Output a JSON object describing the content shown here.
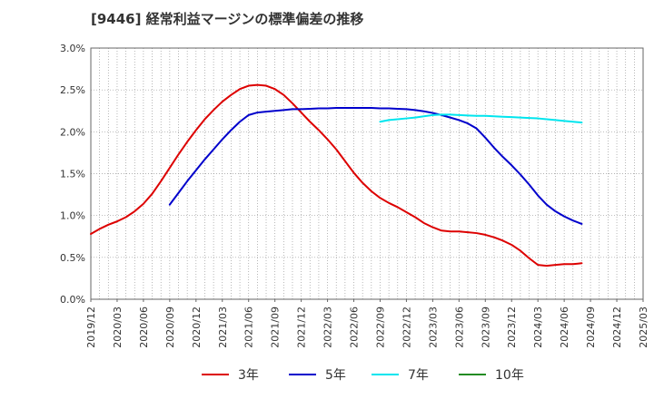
{
  "chart_data": {
    "type": "line",
    "title": "[9446]  経常利益マージンの標準偏差の推移",
    "xlabel": "",
    "ylabel": "",
    "x_ticks": [
      "2019/12",
      "2020/03",
      "2020/06",
      "2020/09",
      "2020/12",
      "2021/03",
      "2021/06",
      "2021/09",
      "2021/12",
      "2022/03",
      "2022/06",
      "2022/09",
      "2022/12",
      "2023/03",
      "2023/06",
      "2023/09",
      "2023/12",
      "2024/03",
      "2024/06",
      "2024/09",
      "2024/12",
      "2025/03"
    ],
    "y_ticks": [
      "0.0%",
      "0.5%",
      "1.0%",
      "1.5%",
      "2.0%",
      "2.5%",
      "3.0%"
    ],
    "xlim": [
      "2019/12",
      "2025/03"
    ],
    "ylim": [
      0,
      3.0
    ],
    "grid": true,
    "legend_position": "bottom",
    "series": [
      {
        "name": "3年",
        "color": "#dd0000",
        "points": [
          [
            "2019/12",
            0.78
          ],
          [
            "2020/01",
            0.84
          ],
          [
            "2020/02",
            0.89
          ],
          [
            "2020/03",
            0.93
          ],
          [
            "2020/04",
            0.98
          ],
          [
            "2020/05",
            1.05
          ],
          [
            "2020/06",
            1.14
          ],
          [
            "2020/07",
            1.26
          ],
          [
            "2020/08",
            1.41
          ],
          [
            "2020/09",
            1.57
          ],
          [
            "2020/10",
            1.73
          ],
          [
            "2020/11",
            1.88
          ],
          [
            "2020/12",
            2.02
          ],
          [
            "2021/01",
            2.15
          ],
          [
            "2021/02",
            2.26
          ],
          [
            "2021/03",
            2.36
          ],
          [
            "2021/04",
            2.44
          ],
          [
            "2021/05",
            2.51
          ],
          [
            "2021/06",
            2.55
          ],
          [
            "2021/07",
            2.56
          ],
          [
            "2021/08",
            2.55
          ],
          [
            "2021/09",
            2.51
          ],
          [
            "2021/10",
            2.44
          ],
          [
            "2021/11",
            2.34
          ],
          [
            "2021/12",
            2.23
          ],
          [
            "2022/01",
            2.12
          ],
          [
            "2022/02",
            2.02
          ],
          [
            "2022/03",
            1.91
          ],
          [
            "2022/04",
            1.79
          ],
          [
            "2022/05",
            1.65
          ],
          [
            "2022/06",
            1.51
          ],
          [
            "2022/07",
            1.39
          ],
          [
            "2022/08",
            1.29
          ],
          [
            "2022/09",
            1.21
          ],
          [
            "2022/10",
            1.15
          ],
          [
            "2022/11",
            1.1
          ],
          [
            "2022/12",
            1.04
          ],
          [
            "2023/01",
            0.98
          ],
          [
            "2023/02",
            0.91
          ],
          [
            "2023/03",
            0.86
          ],
          [
            "2023/04",
            0.82
          ],
          [
            "2023/05",
            0.81
          ],
          [
            "2023/06",
            0.81
          ],
          [
            "2023/07",
            0.8
          ],
          [
            "2023/08",
            0.79
          ],
          [
            "2023/09",
            0.77
          ],
          [
            "2023/10",
            0.74
          ],
          [
            "2023/11",
            0.7
          ],
          [
            "2023/12",
            0.65
          ],
          [
            "2024/01",
            0.58
          ],
          [
            "2024/02",
            0.49
          ],
          [
            "2024/03",
            0.41
          ],
          [
            "2024/04",
            0.4
          ],
          [
            "2024/05",
            0.41
          ],
          [
            "2024/06",
            0.42
          ],
          [
            "2024/07",
            0.42
          ],
          [
            "2024/08",
            0.43
          ]
        ]
      },
      {
        "name": "5年",
        "color": "#0000cc",
        "points": [
          [
            "2020/09",
            1.13
          ],
          [
            "2020/10",
            1.27
          ],
          [
            "2020/11",
            1.41
          ],
          [
            "2020/12",
            1.54
          ],
          [
            "2021/01",
            1.67
          ],
          [
            "2021/02",
            1.79
          ],
          [
            "2021/03",
            1.91
          ],
          [
            "2021/04",
            2.02
          ],
          [
            "2021/05",
            2.12
          ],
          [
            "2021/06",
            2.2
          ],
          [
            "2021/07",
            2.23
          ],
          [
            "2021/08",
            2.24
          ],
          [
            "2021/09",
            2.25
          ],
          [
            "2021/10",
            2.26
          ],
          [
            "2021/11",
            2.27
          ],
          [
            "2021/12",
            2.27
          ],
          [
            "2022/01",
            2.275
          ],
          [
            "2022/02",
            2.28
          ],
          [
            "2022/03",
            2.28
          ],
          [
            "2022/04",
            2.285
          ],
          [
            "2022/05",
            2.285
          ],
          [
            "2022/06",
            2.285
          ],
          [
            "2022/07",
            2.285
          ],
          [
            "2022/08",
            2.285
          ],
          [
            "2022/09",
            2.28
          ],
          [
            "2022/10",
            2.28
          ],
          [
            "2022/11",
            2.275
          ],
          [
            "2022/12",
            2.27
          ],
          [
            "2023/01",
            2.26
          ],
          [
            "2023/02",
            2.245
          ],
          [
            "2023/03",
            2.225
          ],
          [
            "2023/04",
            2.2
          ],
          [
            "2023/05",
            2.17
          ],
          [
            "2023/06",
            2.14
          ],
          [
            "2023/07",
            2.1
          ],
          [
            "2023/08",
            2.04
          ],
          [
            "2023/09",
            1.93
          ],
          [
            "2023/10",
            1.81
          ],
          [
            "2023/11",
            1.7
          ],
          [
            "2023/12",
            1.6
          ],
          [
            "2024/01",
            1.49
          ],
          [
            "2024/02",
            1.37
          ],
          [
            "2024/03",
            1.24
          ],
          [
            "2024/04",
            1.13
          ],
          [
            "2024/05",
            1.05
          ],
          [
            "2024/06",
            0.99
          ],
          [
            "2024/07",
            0.94
          ],
          [
            "2024/08",
            0.9
          ]
        ]
      },
      {
        "name": "7年",
        "color": "#00e5ee",
        "points": [
          [
            "2022/09",
            2.12
          ],
          [
            "2022/10",
            2.14
          ],
          [
            "2022/11",
            2.15
          ],
          [
            "2022/12",
            2.16
          ],
          [
            "2023/01",
            2.17
          ],
          [
            "2023/02",
            2.185
          ],
          [
            "2023/03",
            2.2
          ],
          [
            "2023/04",
            2.205
          ],
          [
            "2023/05",
            2.205
          ],
          [
            "2023/06",
            2.2
          ],
          [
            "2023/07",
            2.195
          ],
          [
            "2023/08",
            2.19
          ],
          [
            "2023/09",
            2.19
          ],
          [
            "2023/10",
            2.185
          ],
          [
            "2023/11",
            2.18
          ],
          [
            "2023/12",
            2.175
          ],
          [
            "2024/01",
            2.17
          ],
          [
            "2024/02",
            2.165
          ],
          [
            "2024/03",
            2.16
          ],
          [
            "2024/04",
            2.15
          ],
          [
            "2024/05",
            2.14
          ],
          [
            "2024/06",
            2.13
          ],
          [
            "2024/07",
            2.12
          ],
          [
            "2024/08",
            2.11
          ]
        ]
      },
      {
        "name": "10年",
        "color": "#228b22",
        "points": []
      }
    ]
  }
}
